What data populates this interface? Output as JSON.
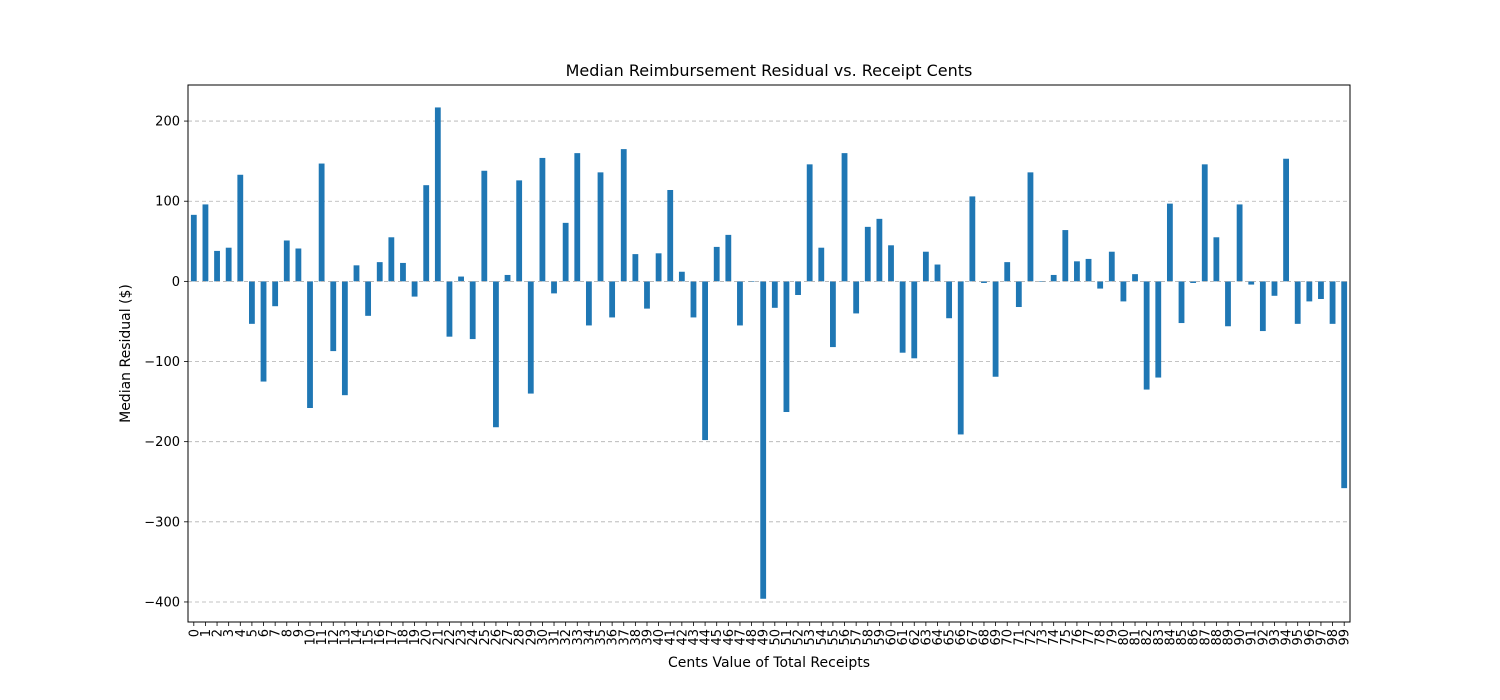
{
  "chart_data": {
    "type": "bar",
    "title": "Median Reimbursement Residual vs. Receipt Cents",
    "xlabel": "Cents Value of Total Receipts",
    "ylabel": "Median Residual ($)",
    "ylim": [
      -425,
      245
    ],
    "yticks": [
      -400,
      -300,
      -200,
      -100,
      0,
      100,
      200
    ],
    "ytick_labels": [
      "−400",
      "−300",
      "−200",
      "−100",
      "0",
      "100",
      "200"
    ],
    "grid": "horizontal dashed",
    "bar_color": "#1f77b4",
    "categories": [
      "0",
      "1",
      "2",
      "3",
      "4",
      "5",
      "6",
      "7",
      "8",
      "9",
      "10",
      "11",
      "12",
      "13",
      "14",
      "15",
      "16",
      "17",
      "18",
      "19",
      "20",
      "21",
      "22",
      "23",
      "24",
      "25",
      "26",
      "27",
      "28",
      "29",
      "30",
      "31",
      "32",
      "33",
      "34",
      "35",
      "36",
      "37",
      "38",
      "39",
      "40",
      "41",
      "42",
      "43",
      "44",
      "45",
      "46",
      "47",
      "48",
      "49",
      "50",
      "51",
      "52",
      "53",
      "54",
      "55",
      "56",
      "57",
      "58",
      "59",
      "60",
      "61",
      "62",
      "63",
      "64",
      "65",
      "66",
      "67",
      "68",
      "69",
      "70",
      "71",
      "72",
      "73",
      "74",
      "75",
      "76",
      "77",
      "78",
      "79",
      "80",
      "81",
      "82",
      "83",
      "84",
      "85",
      "86",
      "87",
      "88",
      "89",
      "90",
      "91",
      "92",
      "93",
      "94",
      "95",
      "96",
      "97",
      "98",
      "99"
    ],
    "values": [
      83,
      96,
      38,
      42,
      133,
      -53,
      -125,
      -31,
      51,
      41,
      -158,
      147,
      -87,
      -142,
      20,
      -43,
      24,
      55,
      23,
      -19,
      120,
      217,
      -69,
      6,
      -72,
      138,
      -182,
      8,
      126,
      -140,
      154,
      -15,
      73,
      160,
      -55,
      136,
      -45,
      165,
      34,
      -34,
      35,
      114,
      12,
      -45,
      -198,
      43,
      58,
      -55,
      0,
      -396,
      -33,
      -163,
      -17,
      146,
      42,
      -82,
      160,
      -40,
      68,
      78,
      45,
      -89,
      -96,
      37,
      21,
      -46,
      -191,
      106,
      -2,
      -119,
      24,
      -32,
      136,
      0,
      8,
      64,
      25,
      28,
      -9,
      37,
      -25,
      9,
      -135,
      -120,
      97,
      -52,
      -2,
      146,
      55,
      -56,
      96,
      -4,
      -62,
      -18,
      153,
      -53,
      -25,
      -22,
      -53,
      -258
    ]
  }
}
